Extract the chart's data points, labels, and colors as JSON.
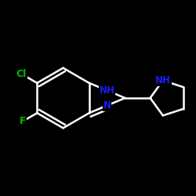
{
  "background_color": "#000000",
  "bond_color": "#ffffff",
  "atom_colors": {
    "N": "#1a1aff",
    "Cl": "#00bb00",
    "F": "#00bb00"
  },
  "bond_width": 1.8,
  "figsize": [
    2.5,
    2.5
  ],
  "dpi": 100,
  "xlim": [
    0.0,
    1.0
  ],
  "ylim": [
    0.1,
    0.9
  ]
}
